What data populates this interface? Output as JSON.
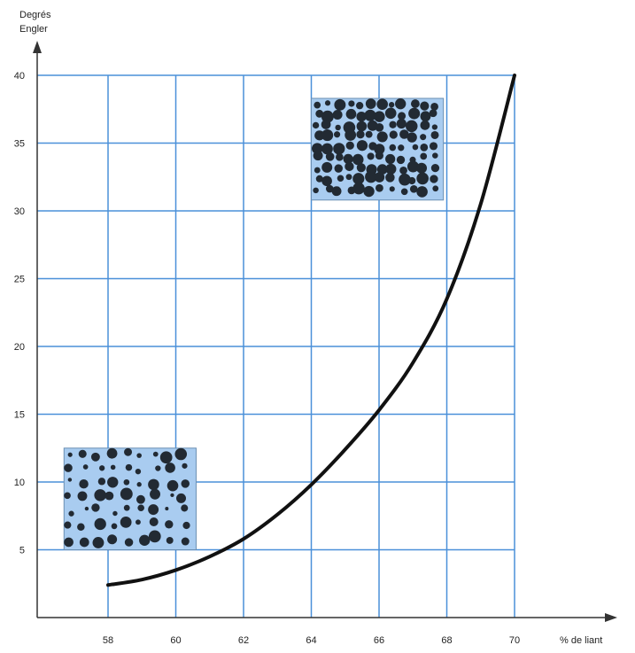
{
  "chart_data": {
    "type": "line",
    "ylabel_lines": [
      "Degrés",
      "Engler"
    ],
    "xlabel": "% de liant",
    "xlim": [
      56,
      72
    ],
    "ylim": [
      0,
      40
    ],
    "x_ticks": [
      58,
      60,
      62,
      64,
      66,
      68,
      70
    ],
    "y_ticks": [
      5,
      10,
      15,
      20,
      25,
      30,
      35,
      40
    ],
    "grid": true,
    "series": [
      {
        "x": [
          58,
          59,
          60,
          61,
          62,
          63,
          64,
          65,
          66,
          67,
          68,
          69,
          70
        ],
        "y": [
          2.4,
          2.8,
          3.5,
          4.5,
          5.8,
          7.6,
          9.8,
          12.4,
          15.3,
          18.8,
          23.5,
          30.5,
          40
        ]
      }
    ],
    "insets": [
      {
        "name": "low-binder",
        "x_range": [
          56.7,
          60.6
        ],
        "y_range": [
          5,
          12.5
        ],
        "bg": "#a9ccf0",
        "dot": "#222a33",
        "density": "sparse"
      },
      {
        "name": "high-binder",
        "x_range": [
          64.0,
          67.9
        ],
        "y_range": [
          30.8,
          38.3
        ],
        "bg": "#a9ccf0",
        "dot": "#222a33",
        "density": "dense"
      }
    ],
    "colors": {
      "grid": "#4a90d9",
      "axis": "#333333",
      "curve": "#111111"
    }
  }
}
